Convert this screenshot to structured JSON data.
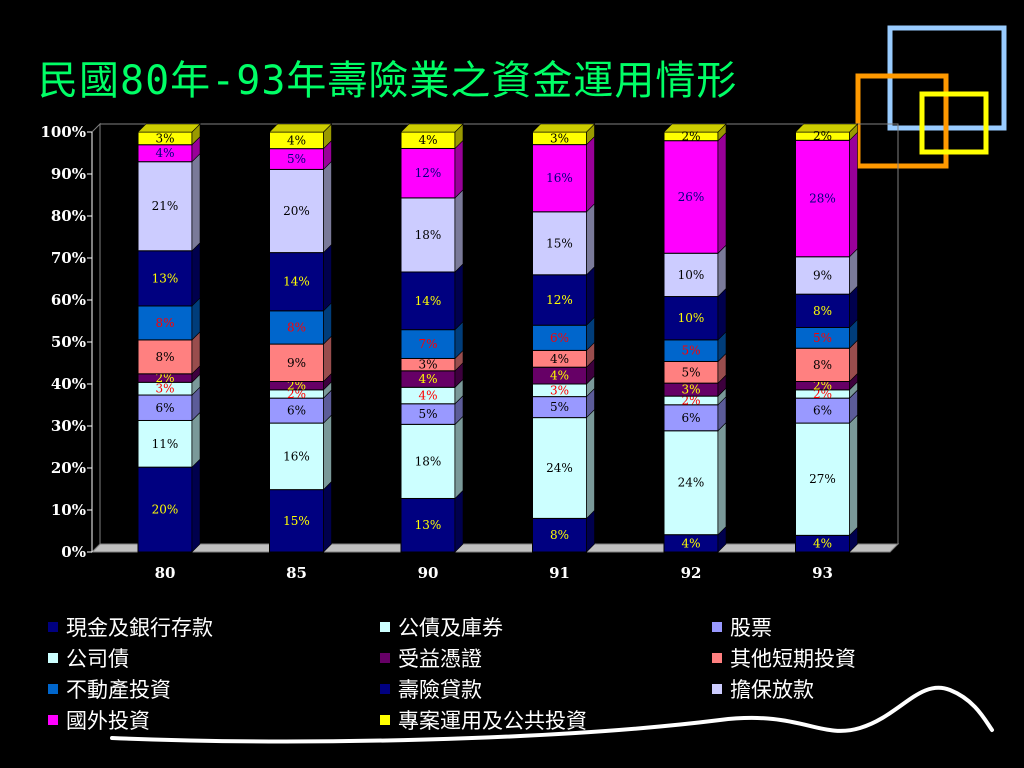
{
  "title": "民國80年-93年壽險業之資金運用情形",
  "chart_data": {
    "type": "bar",
    "stacked": true,
    "percent": true,
    "categories": [
      "80",
      "85",
      "90",
      "91",
      "92",
      "93"
    ],
    "y_ticks": [
      "0%",
      "10%",
      "20%",
      "30%",
      "40%",
      "50%",
      "60%",
      "70%",
      "80%",
      "90%",
      "100%"
    ],
    "ylim": [
      0,
      100
    ],
    "legend_position": "bottom",
    "series": [
      {
        "name": "現金及銀行存款",
        "color": "#000080",
        "label_color": "#FFFF00",
        "values": [
          20,
          15,
          13,
          8,
          4,
          4
        ]
      },
      {
        "name": "公司債",
        "color": "#CCFFFF",
        "label_color": "#000000",
        "values": [
          11,
          16,
          18,
          24,
          24,
          27
        ]
      },
      {
        "name": "股票",
        "color": "#9999FF",
        "label_color": "#000000",
        "values": [
          6,
          6,
          5,
          5,
          6,
          6
        ]
      },
      {
        "name": "公債及庫券",
        "color": "#CCFFFF",
        "label_color": "#FF0000",
        "values": [
          3,
          2,
          4,
          3,
          2,
          2
        ]
      },
      {
        "name": "受益憑證",
        "color": "#660066",
        "label_color": "#FFFF00",
        "values": [
          2,
          2,
          4,
          4,
          3,
          2
        ]
      },
      {
        "name": "其他短期投資",
        "color": "#FF8080",
        "label_color": "#000000",
        "values": [
          8,
          9,
          3,
          4,
          5,
          8
        ]
      },
      {
        "name": "不動產投資",
        "color": "#0066CC",
        "label_color": "#FF0000",
        "values": [
          8,
          8,
          7,
          6,
          5,
          5
        ]
      },
      {
        "name": "壽險貸款",
        "color": "#000080",
        "label_color": "#FFFF00",
        "values": [
          13,
          14,
          14,
          12,
          10,
          8
        ]
      },
      {
        "name": "擔保放款",
        "color": "#CCCCFF",
        "label_color": "#000000",
        "values": [
          21,
          20,
          18,
          15,
          10,
          9
        ]
      },
      {
        "name": "國外投資",
        "color": "#FF00FF",
        "label_color": "#000080",
        "values": [
          4,
          5,
          12,
          16,
          26,
          28
        ]
      },
      {
        "name": "專案運用及公共投資",
        "color": "#FFFF00",
        "label_color": "#000000",
        "values": [
          3,
          4,
          4,
          3,
          2,
          2
        ]
      }
    ]
  },
  "legend": [
    {
      "label": "現金及銀行存款",
      "color": "#000080"
    },
    {
      "label": "公債及庫券",
      "color": "#CCFFFF"
    },
    {
      "label": "股票",
      "color": "#9999FF"
    },
    {
      "label": "公司債",
      "color": "#CCFFFF"
    },
    {
      "label": "受益憑證",
      "color": "#660066"
    },
    {
      "label": "其他短期投資",
      "color": "#FF8080"
    },
    {
      "label": "不動產投資",
      "color": "#0066CC"
    },
    {
      "label": "壽險貸款",
      "color": "#000080"
    },
    {
      "label": "擔保放款",
      "color": "#CCCCFF"
    },
    {
      "label": "國外投資",
      "color": "#FF00FF"
    },
    {
      "label": "專案運用及公共投資",
      "color": "#FFFF00"
    }
  ],
  "decoration": {
    "square_colors": [
      "#99CCFF",
      "#FF9900",
      "#FFFF00"
    ]
  }
}
